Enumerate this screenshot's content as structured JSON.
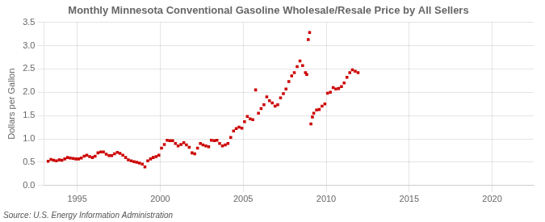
{
  "chart_data": {
    "type": "scatter",
    "title": "Monthly Minnesota Conventional Gasoline Wholesale/Resale Price by All Sellers",
    "y_label": "Dollars per Gallon",
    "annotations": [
      "Source: U.S. Energy Information Administration"
    ],
    "xlim": [
      1993.0,
      2022.5
    ],
    "xticks": [
      1995,
      2000,
      2005,
      2010,
      2015,
      2020
    ],
    "ylim": [
      0.0,
      3.5
    ],
    "yticks": [
      {
        "value": 0.0,
        "label": "0.0"
      },
      0.5,
      {
        "value": 1.0,
        "label": "1.0"
      },
      1.5,
      {
        "value": 2.0,
        "label": "2.0"
      },
      2.5,
      {
        "value": 3.0,
        "label": "3.0"
      },
      3.5
    ],
    "grid": true,
    "color": "#CC0000",
    "marker": "square",
    "x": [
      1993.25,
      1993.42,
      1993.58,
      1993.75,
      1993.92,
      1994.08,
      1994.25,
      1994.42,
      1994.58,
      1994.75,
      1994.92,
      1995.08,
      1995.25,
      1995.42,
      1995.58,
      1995.75,
      1995.92,
      1996.08,
      1996.25,
      1996.42,
      1996.58,
      1996.75,
      1996.92,
      1997.08,
      1997.25,
      1997.42,
      1997.58,
      1997.75,
      1997.92,
      1998.08,
      1998.25,
      1998.42,
      1998.58,
      1998.75,
      1998.92,
      1999.08,
      1999.25,
      1999.42,
      1999.58,
      1999.75,
      1999.92,
      2000.08,
      2000.25,
      2000.42,
      2000.58,
      2000.75,
      2000.92,
      2001.08,
      2001.25,
      2001.42,
      2001.58,
      2001.75,
      2001.92,
      2002.08,
      2002.25,
      2002.42,
      2002.58,
      2002.75,
      2002.92,
      2003.08,
      2003.25,
      2003.42,
      2003.58,
      2003.75,
      2003.92,
      2004.08,
      2004.25,
      2004.42,
      2004.58,
      2004.75,
      2004.92,
      2005.08,
      2005.25,
      2005.42,
      2005.58,
      2005.75,
      2005.92,
      2006.08,
      2006.25,
      2006.42,
      2006.58,
      2006.75,
      2006.92,
      2007.08,
      2007.25,
      2007.42,
      2007.58,
      2007.75,
      2007.92,
      2008.08,
      2008.25,
      2008.42,
      2008.58,
      2008.75,
      2008.83,
      2008.92,
      2009.0,
      2009.08,
      2009.17,
      2009.25,
      2009.42,
      2009.58,
      2009.75,
      2009.92,
      2010.08,
      2010.25,
      2010.42,
      2010.58,
      2010.75,
      2010.92,
      2011.08,
      2011.25,
      2011.42,
      2011.58,
      2011.75,
      2011.92
    ],
    "values": [
      0.52,
      0.56,
      0.54,
      0.53,
      0.55,
      0.54,
      0.57,
      0.6,
      0.59,
      0.58,
      0.57,
      0.57,
      0.59,
      0.63,
      0.65,
      0.62,
      0.6,
      0.63,
      0.7,
      0.72,
      0.72,
      0.67,
      0.64,
      0.64,
      0.68,
      0.71,
      0.69,
      0.65,
      0.6,
      0.55,
      0.53,
      0.51,
      0.5,
      0.48,
      0.46,
      0.4,
      0.53,
      0.57,
      0.6,
      0.62,
      0.65,
      0.8,
      0.88,
      0.97,
      0.96,
      0.96,
      0.9,
      0.85,
      0.88,
      0.92,
      0.87,
      0.82,
      0.7,
      0.68,
      0.8,
      0.9,
      0.87,
      0.85,
      0.83,
      0.97,
      0.96,
      0.97,
      0.9,
      0.85,
      0.87,
      0.9,
      1.03,
      1.17,
      1.22,
      1.25,
      1.23,
      1.37,
      1.48,
      1.43,
      1.41,
      2.05,
      1.55,
      1.65,
      1.73,
      1.9,
      1.82,
      1.77,
      1.7,
      1.73,
      1.88,
      1.97,
      2.07,
      2.23,
      2.35,
      2.42,
      2.55,
      2.67,
      2.57,
      2.42,
      2.38,
      3.13,
      3.28,
      1.32,
      1.47,
      1.55,
      1.62,
      1.63,
      1.7,
      1.75,
      1.98,
      2.0,
      2.1,
      2.07,
      2.08,
      2.12,
      2.2,
      2.32,
      2.42,
      2.48,
      2.45,
      2.42
    ]
  }
}
